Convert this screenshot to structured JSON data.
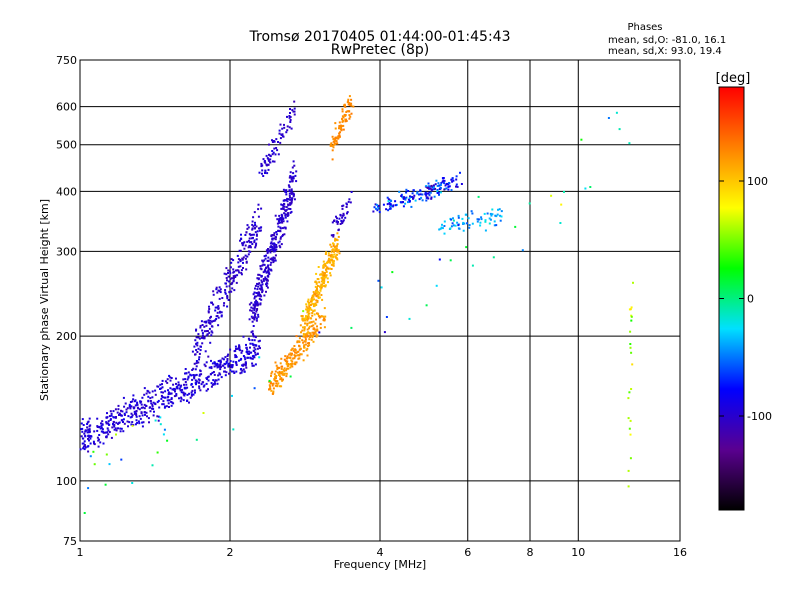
{
  "title_line1": "Tromsø 20170405 01:44:00-01:45:43",
  "title_line2": "RwPretec (8p)",
  "phases_block": {
    "header": "Phases",
    "line_o": "mean, sd,O: -81.0, 16.1",
    "line_x": "mean, sd,X:  93.0, 19.4"
  },
  "colorbar": {
    "unit_label": "[deg]",
    "ticks": [
      100,
      0,
      -100
    ],
    "range": [
      -180,
      180
    ],
    "colormap": [
      "#000000",
      "#5a0090",
      "#0000ff",
      "#00e0ff",
      "#00ff00",
      "#ffff00",
      "#ff8000",
      "#ff0000"
    ]
  },
  "chart_data": {
    "type": "scatter",
    "title": "Tromsø 20170405 01:44:00-01:45:43",
    "subtitle": "RwPretec (8p)",
    "xlabel": "Frequency [MHz]",
    "ylabel": "Stationary phase Virtual Height [km]",
    "x_scale": "log",
    "y_scale": "log",
    "xlim": [
      1,
      16
    ],
    "ylim": [
      75,
      750
    ],
    "x_ticks": [
      1,
      2,
      4,
      6,
      8,
      10,
      16
    ],
    "y_ticks": [
      75,
      100,
      200,
      300,
      400,
      500,
      600,
      750
    ],
    "grid": true,
    "color_encodes": "phase [deg]",
    "clusters": [
      {
        "name": "O-trace lower",
        "fmin": 1.0,
        "fmax": 2.3,
        "hmin": 115,
        "hmax": 200,
        "phase": -95,
        "spread": 18,
        "points": 620
      },
      {
        "name": "O-trace rising",
        "fmin": 1.7,
        "fmax": 2.3,
        "hmin": 170,
        "hmax": 380,
        "phase": -100,
        "spread": 15,
        "points": 260
      },
      {
        "name": "O-trace steep",
        "fmin": 2.2,
        "fmax": 2.7,
        "hmin": 200,
        "hmax": 460,
        "phase": -100,
        "spread": 14,
        "points": 360
      },
      {
        "name": "O-trace top",
        "fmin": 2.3,
        "fmax": 2.7,
        "hmin": 420,
        "hmax": 610,
        "phase": -100,
        "spread": 12,
        "points": 80
      },
      {
        "name": "X-trace lower",
        "fmin": 2.4,
        "fmax": 3.1,
        "hmin": 150,
        "hmax": 230,
        "phase": 120,
        "spread": 15,
        "points": 230
      },
      {
        "name": "X-trace rising",
        "fmin": 2.8,
        "fmax": 3.3,
        "hmin": 200,
        "hmax": 330,
        "phase": 110,
        "spread": 20,
        "points": 260
      },
      {
        "name": "X-trace top",
        "fmin": 3.2,
        "fmax": 3.5,
        "hmin": 480,
        "hmax": 630,
        "phase": 125,
        "spread": 10,
        "points": 90
      },
      {
        "name": "O-trace near 350 km",
        "fmin": 3.2,
        "fmax": 3.5,
        "hmin": 320,
        "hmax": 390,
        "phase": -100,
        "spread": 12,
        "points": 40
      },
      {
        "name": "F2 band",
        "fmin": 3.9,
        "fmax": 5.8,
        "hmin": 360,
        "hmax": 430,
        "phase": -70,
        "spread": 70,
        "points": 170
      },
      {
        "name": "F2 tail",
        "fmin": 5.3,
        "fmax": 7.1,
        "hmin": 335,
        "hmax": 360,
        "phase": -40,
        "spread": 40,
        "points": 70
      },
      {
        "name": "sparse noise",
        "fmin": 1.0,
        "fmax": 13.5,
        "hmin": 80,
        "hmax": 650,
        "phase": 0,
        "spread": 110,
        "points": 60
      },
      {
        "name": "vertical streak 12.7 MHz",
        "fmin": 12.6,
        "fmax": 12.8,
        "hmin": 85,
        "hmax": 300,
        "phase": 60,
        "spread": 60,
        "points": 22
      }
    ]
  }
}
